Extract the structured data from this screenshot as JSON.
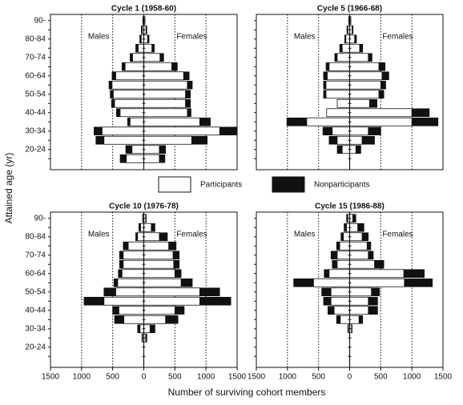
{
  "ylabel": "Attained age (yr)",
  "xlabel": "Number of surviving cohort members",
  "legend": [
    {
      "name": "Participants",
      "color": "#ffffff"
    },
    {
      "name": "Nonparticipants",
      "color": "#111111"
    }
  ],
  "chart_data": [
    {
      "type": "pyramid",
      "title": "Cycle 1 (1958-60)",
      "left_label": "Males",
      "right_label": "Females",
      "categories": [
        null,
        "20-24",
        null,
        "30-34",
        null,
        "40-44",
        null,
        "50-54",
        null,
        "60-64",
        null,
        "70-74",
        null,
        "80-84",
        null,
        "90-"
      ],
      "xlim": [
        -1500,
        1500
      ],
      "grid": [
        -1000,
        -500,
        500,
        1000
      ],
      "males": {
        "participants": [
          280,
          190,
          640,
          670,
          220,
          380,
          470,
          490,
          510,
          450,
          300,
          180,
          90,
          40,
          25,
          10
        ],
        "nonparticipants": [
          100,
          100,
          130,
          130,
          40,
          60,
          50,
          50,
          50,
          60,
          50,
          40,
          40,
          25,
          15,
          5
        ]
      },
      "females": {
        "participants": [
          250,
          250,
          770,
          1220,
          900,
          700,
          670,
          670,
          700,
          640,
          450,
          260,
          130,
          60,
          35,
          15
        ],
        "nonparticipants": [
          90,
          100,
          250,
          280,
          170,
          60,
          80,
          80,
          80,
          90,
          90,
          60,
          40,
          25,
          15,
          5
        ]
      }
    },
    {
      "type": "pyramid",
      "title": "Cycle 5 (1966-68)",
      "left_label": "Males",
      "right_label": "Females",
      "xlim": [
        -1500,
        1500
      ],
      "grid": [
        -1000,
        -500,
        500,
        1000
      ],
      "males": {
        "participants": [
          0,
          120,
          200,
          280,
          690,
          370,
          200,
          380,
          380,
          360,
          330,
          200,
          120,
          60,
          30,
          10
        ],
        "nonparticipants": [
          0,
          80,
          130,
          150,
          320,
          0,
          0,
          40,
          40,
          60,
          50,
          40,
          40,
          20,
          15,
          5
        ]
      },
      "females": {
        "participants": [
          0,
          100,
          200,
          300,
          1000,
          1000,
          320,
          470,
          500,
          520,
          470,
          300,
          160,
          80,
          40,
          15
        ],
        "nonparticipants": [
          0,
          80,
          200,
          200,
          420,
          280,
          120,
          80,
          80,
          110,
          100,
          60,
          50,
          30,
          15,
          5
        ]
      }
    },
    {
      "type": "pyramid",
      "title": "Cycle 10 (1976-78)",
      "left_label": "Males",
      "right_label": "Females",
      "categories": [
        null,
        "20-24",
        null,
        "30-34",
        null,
        "40-44",
        null,
        "50-54",
        null,
        "60-64",
        null,
        "70-74",
        null,
        "80-84",
        null,
        "90-"
      ],
      "xlim": [
        -1500,
        1500
      ],
      "grid": [
        -1000,
        -500,
        500,
        1000
      ],
      "xticks": [
        {
          "value": -1500,
          "label": "1500"
        },
        {
          "value": -1000,
          "label": "1000"
        },
        {
          "value": -500,
          "label": "500"
        },
        0,
        500,
        1000,
        1500
      ],
      "males": {
        "participants": [
          0,
          0,
          20,
          60,
          320,
          400,
          640,
          450,
          420,
          350,
          330,
          330,
          250,
          100,
          50,
          15
        ],
        "nonparticipants": [
          0,
          0,
          10,
          40,
          150,
          100,
          320,
          190,
          60,
          60,
          60,
          60,
          80,
          30,
          30,
          5
        ]
      },
      "females": {
        "participants": [
          0,
          0,
          30,
          100,
          350,
          500,
          900,
          900,
          600,
          500,
          480,
          470,
          400,
          250,
          120,
          30
        ],
        "nonparticipants": [
          0,
          0,
          20,
          80,
          200,
          150,
          500,
          320,
          180,
          100,
          90,
          100,
          120,
          130,
          60,
          10
        ]
      }
    },
    {
      "type": "pyramid",
      "title": "Cycle 15 (1986-88)",
      "left_label": "Males",
      "right_label": "Females",
      "xlim": [
        -1500,
        1500
      ],
      "grid": [
        -1000,
        -500,
        500,
        1000
      ],
      "xticks": [
        {
          "value": -1500,
          "label": "1500"
        },
        {
          "value": -1000,
          "label": "1000"
        },
        {
          "value": -500,
          "label": "500"
        },
        0,
        500,
        1000,
        1500
      ],
      "males": {
        "participants": [
          0,
          0,
          0,
          20,
          150,
          250,
          300,
          300,
          580,
          330,
          200,
          200,
          160,
          100,
          50,
          30
        ],
        "nonparticipants": [
          0,
          0,
          0,
          10,
          60,
          100,
          120,
          150,
          320,
          80,
          80,
          100,
          50,
          40,
          40,
          20
        ]
      },
      "females": {
        "participants": [
          0,
          0,
          0,
          30,
          150,
          300,
          300,
          350,
          880,
          870,
          400,
          300,
          280,
          200,
          130,
          50
        ],
        "nonparticipants": [
          0,
          0,
          0,
          10,
          60,
          150,
          150,
          130,
          450,
          330,
          150,
          80,
          60,
          100,
          100,
          50
        ]
      }
    }
  ]
}
